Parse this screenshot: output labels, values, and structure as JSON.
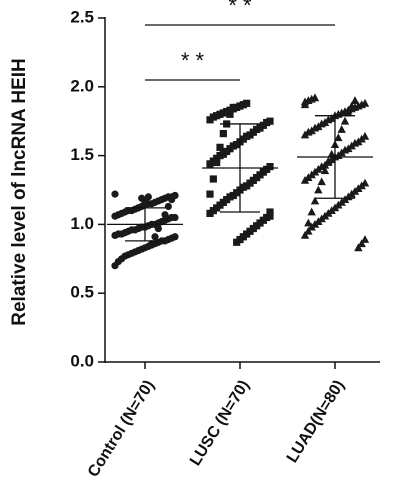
{
  "chart_data": {
    "type": "scatter",
    "y_label": "Relative level of  lncRNA HEIH",
    "categories": [
      "Control (N=70)",
      "LUSC (N=70)",
      "LUAD(N=80)"
    ],
    "series": [
      {
        "marker": "circle",
        "color": "#1a1a1a",
        "values": [
          1.22,
          1.21,
          1.2,
          1.2,
          1.19,
          1.18,
          1.17,
          1.16,
          1.15,
          1.15,
          1.14,
          1.13,
          1.12,
          1.11,
          1.1,
          1.1,
          1.09,
          1.08,
          1.07,
          1.06,
          1.05,
          1.05,
          1.04,
          1.03,
          1.02,
          1.01,
          1.0,
          1.0,
          0.99,
          0.98,
          0.98,
          0.97,
          0.96,
          0.96,
          0.95,
          0.94,
          0.93,
          0.93,
          0.92,
          0.91,
          0.9,
          0.89,
          0.88,
          0.88,
          0.87,
          0.86,
          0.85,
          0.84,
          0.83,
          0.82,
          0.81,
          0.8,
          0.79,
          0.78,
          0.77,
          0.75,
          0.73,
          0.7,
          1.21,
          1.18,
          1.13,
          1.07,
          1.02,
          0.97,
          0.91,
          0.86,
          1.2,
          1.16,
          1.19,
          1.12
        ]
      },
      {
        "marker": "square",
        "color": "#1a1a1a",
        "values": [
          1.88,
          1.87,
          1.86,
          1.85,
          1.84,
          1.83,
          1.82,
          1.81,
          1.8,
          1.79,
          1.78,
          1.76,
          1.75,
          1.74,
          1.72,
          1.7,
          1.69,
          1.67,
          1.65,
          1.64,
          1.62,
          1.6,
          1.58,
          1.57,
          1.55,
          1.53,
          1.51,
          1.5,
          1.48,
          1.46,
          1.44,
          1.42,
          1.4,
          1.38,
          1.36,
          1.34,
          1.32,
          1.3,
          1.28,
          1.27,
          1.25,
          1.23,
          1.21,
          1.2,
          1.18,
          1.16,
          1.14,
          1.12,
          1.1,
          1.08,
          1.06,
          1.05,
          1.03,
          1.01,
          0.99,
          0.97,
          0.95,
          0.93,
          0.91,
          0.89,
          0.87,
          1.85,
          1.8,
          1.73,
          1.66,
          1.56,
          1.45,
          1.33,
          1.22,
          1.09
        ]
      },
      {
        "marker": "triangle",
        "color": "#1a1a1a",
        "values": [
          1.92,
          1.91,
          1.9,
          1.89,
          1.88,
          1.87,
          1.86,
          1.85,
          1.84,
          1.83,
          1.82,
          1.81,
          1.8,
          1.79,
          1.77,
          1.76,
          1.74,
          1.73,
          1.71,
          1.7,
          1.68,
          1.67,
          1.65,
          1.64,
          1.62,
          1.6,
          1.59,
          1.57,
          1.55,
          1.54,
          1.52,
          1.5,
          1.49,
          1.47,
          1.45,
          1.43,
          1.42,
          1.4,
          1.38,
          1.36,
          1.34,
          1.32,
          1.3,
          1.28,
          1.26,
          1.24,
          1.22,
          1.2,
          1.18,
          1.16,
          1.14,
          1.12,
          1.1,
          1.08,
          1.06,
          1.04,
          1.02,
          1.0,
          0.98,
          0.95,
          0.92,
          0.89,
          0.86,
          0.83,
          1.9,
          1.86,
          1.81,
          1.75,
          1.69,
          1.63,
          1.58,
          1.51,
          1.46,
          1.39,
          1.31,
          1.25,
          1.17,
          1.09,
          1.01,
          1.87
        ]
      }
    ],
    "mean": [
      1.0,
      1.41,
      1.49
    ],
    "sd": [
      0.12,
      0.32,
      0.3
    ],
    "annotations": [
      "* *",
      "* *"
    ],
    "ylim": [
      0,
      2.5
    ],
    "yticks": [
      {
        "value": 0,
        "label": "0.0"
      },
      0.5,
      {
        "value": 1,
        "label": "1.0"
      },
      1.5,
      {
        "value": 2,
        "label": "2.0"
      },
      2.5
    ]
  }
}
